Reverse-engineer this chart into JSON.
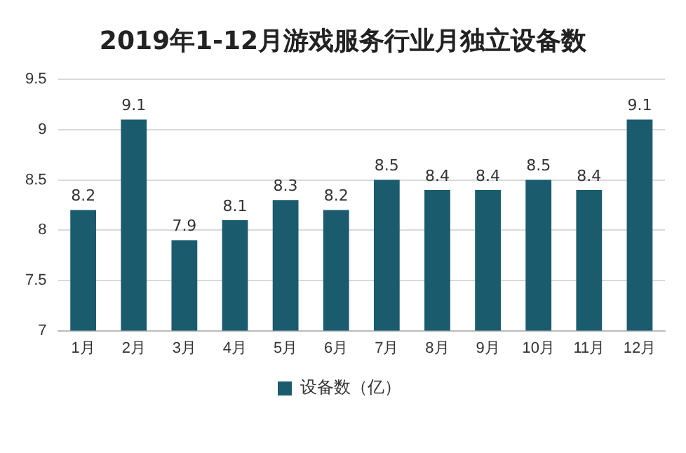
{
  "chart_data": {
    "type": "bar",
    "title": "2019年1-12月游戏服务行业月独立设备数",
    "categories": [
      "1月",
      "2月",
      "3月",
      "4月",
      "5月",
      "6月",
      "7月",
      "8月",
      "9月",
      "10月",
      "11月",
      "12月"
    ],
    "series": [
      {
        "name": "设备数（亿）",
        "color": "#1b5b6e",
        "values": [
          8.2,
          9.1,
          7.9,
          8.1,
          8.3,
          8.2,
          8.5,
          8.4,
          8.4,
          8.5,
          8.4,
          9.1
        ]
      }
    ],
    "ylim": [
      7,
      9.5
    ],
    "yticks": [
      7,
      7.5,
      8,
      8.5,
      9,
      9.5
    ],
    "grid": "y",
    "legend": "bottom",
    "data_labels": true
  }
}
